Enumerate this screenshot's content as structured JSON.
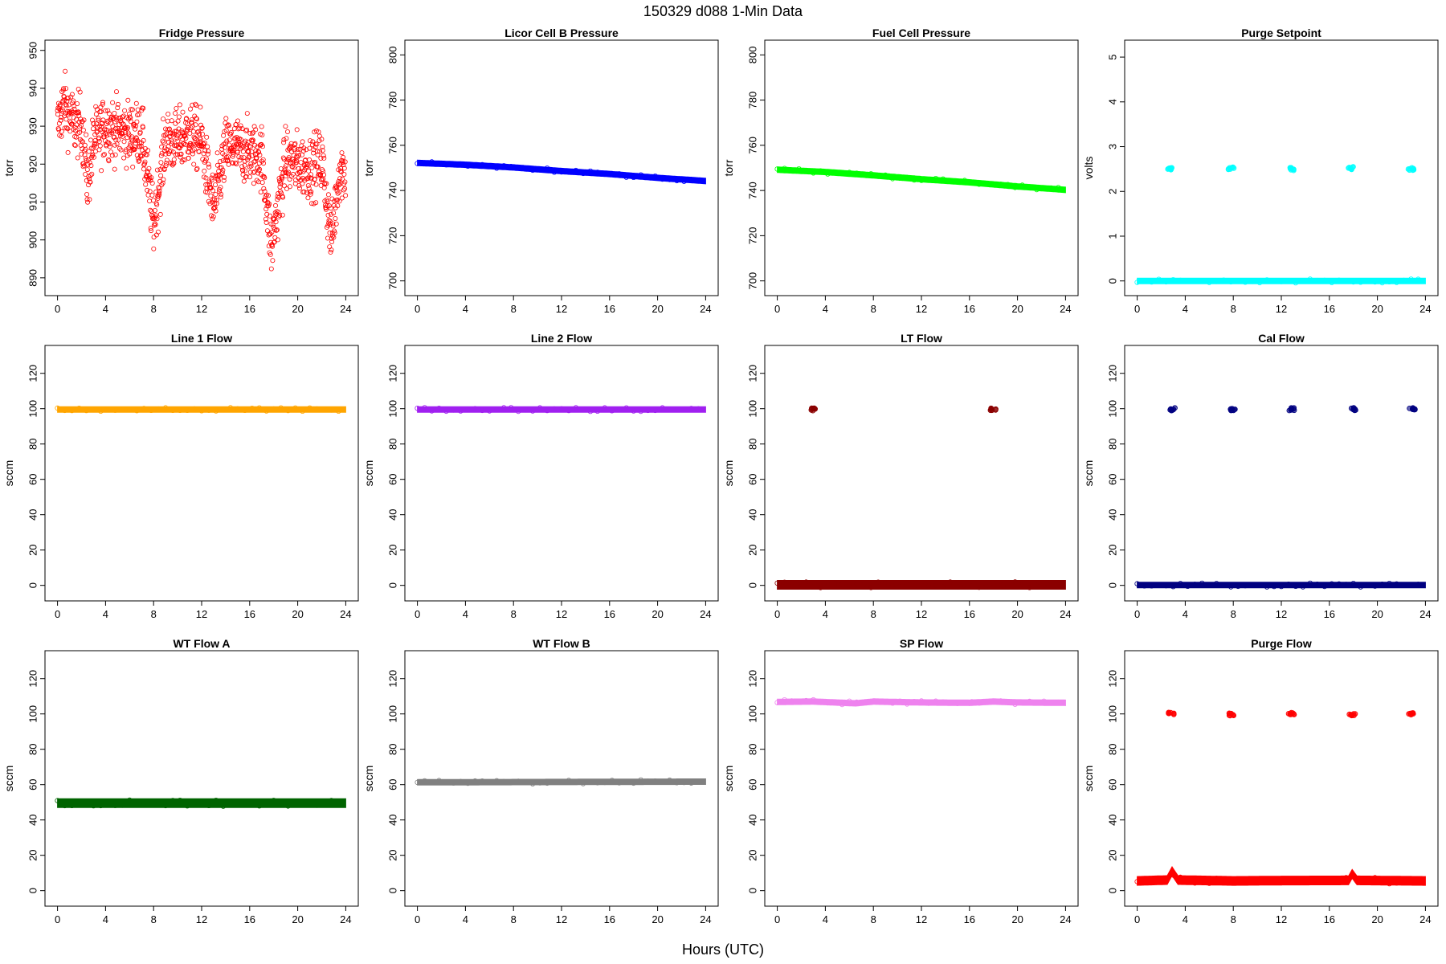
{
  "figure": {
    "title": "150329   d088   1-Min Data",
    "xlabel": "Hours (UTC)"
  },
  "chart_data": [
    {
      "type": "scatter",
      "title": "Fridge Pressure",
      "ylabel": "torr",
      "xlim": [
        0,
        24
      ],
      "ylim": [
        888,
        950
      ],
      "xticks": [
        0,
        4,
        8,
        12,
        16,
        20,
        24
      ],
      "yticks": [
        890,
        900,
        910,
        920,
        930,
        940,
        950
      ],
      "series": [
        {
          "color": "#ff0000",
          "marker": "open-circle",
          "scatter": 5.5,
          "points": [
            [
              0,
              930
            ],
            [
              0.5,
              936
            ],
            [
              1,
              933
            ],
            [
              1.5,
              930
            ],
            [
              2,
              931
            ],
            [
              2.5,
              915
            ],
            [
              3,
              926
            ],
            [
              4,
              930
            ],
            [
              5,
              929
            ],
            [
              6,
              928
            ],
            [
              7,
              928
            ],
            [
              8,
              904
            ],
            [
              9,
              926
            ],
            [
              10,
              926
            ],
            [
              11,
              928
            ],
            [
              12,
              926
            ],
            [
              13,
              908
            ],
            [
              14,
              924
            ],
            [
              15,
              924
            ],
            [
              16,
              923
            ],
            [
              17,
              922
            ],
            [
              17.8,
              898
            ],
            [
              19,
              921
            ],
            [
              20,
              920
            ],
            [
              21,
              919
            ],
            [
              22,
              921
            ],
            [
              22.8,
              900
            ],
            [
              23.5,
              919
            ],
            [
              24,
              918
            ]
          ]
        }
      ]
    },
    {
      "type": "scatter",
      "title": "Licor Cell B Pressure",
      "ylabel": "torr",
      "xlim": [
        0,
        24
      ],
      "ylim": [
        698,
        802
      ],
      "xticks": [
        0,
        4,
        8,
        12,
        16,
        20,
        24
      ],
      "yticks": [
        700,
        720,
        740,
        760,
        780,
        800
      ],
      "series": [
        {
          "color": "#0000ff",
          "marker": "filled-band",
          "points": [
            [
              0,
              752.2
            ],
            [
              4,
              751.4
            ],
            [
              8,
              750.2
            ],
            [
              12,
              748.6
            ],
            [
              16,
              747.3
            ],
            [
              20,
              745.6
            ],
            [
              24,
              744.2
            ]
          ]
        }
      ]
    },
    {
      "type": "scatter",
      "title": "Fuel Cell Pressure",
      "ylabel": "torr",
      "xlim": [
        0,
        24
      ],
      "ylim": [
        698,
        802
      ],
      "xticks": [
        0,
        4,
        8,
        12,
        16,
        20,
        24
      ],
      "yticks": [
        700,
        720,
        740,
        760,
        780,
        800
      ],
      "series": [
        {
          "color": "#00ff00",
          "marker": "filled-band",
          "points": [
            [
              0,
              749.2
            ],
            [
              4,
              748.2
            ],
            [
              8,
              746.7
            ],
            [
              12,
              745
            ],
            [
              16,
              743.6
            ],
            [
              20,
              741.8
            ],
            [
              24,
              740.3
            ]
          ]
        }
      ]
    },
    {
      "type": "scatter",
      "title": "Purge Setpoint",
      "ylabel": "volts",
      "xlim": [
        0,
        24
      ],
      "ylim": [
        -0.1,
        5.15
      ],
      "xticks": [
        0,
        4,
        8,
        12,
        16,
        20,
        24
      ],
      "yticks": [
        0,
        1,
        2,
        3,
        4,
        5
      ],
      "series": [
        {
          "color": "#00ffff",
          "marker": "filled-band",
          "points": [
            [
              0,
              0
            ],
            [
              24,
              0
            ]
          ]
        },
        {
          "color": "#00ffff",
          "marker": "clusters",
          "points": [
            [
              2.7,
              2.5
            ],
            [
              7.7,
              2.52
            ],
            [
              12.7,
              2.5
            ],
            [
              17.7,
              2.52
            ],
            [
              22.7,
              2.5
            ]
          ]
        }
      ]
    },
    {
      "type": "scatter",
      "title": "Line 1 Flow",
      "ylabel": "sccm",
      "xlim": [
        0,
        24
      ],
      "ylim": [
        -3,
        130
      ],
      "xticks": [
        0,
        4,
        8,
        12,
        16,
        20,
        24
      ],
      "yticks": [
        0,
        20,
        40,
        60,
        80,
        100,
        120
      ],
      "series": [
        {
          "color": "#ffa500",
          "marker": "filled-band",
          "points": [
            [
              0,
              99.5
            ],
            [
              24,
              99.5
            ]
          ]
        }
      ]
    },
    {
      "type": "scatter",
      "title": "Line 2 Flow",
      "ylabel": "sccm",
      "xlim": [
        0,
        24
      ],
      "ylim": [
        -3,
        130
      ],
      "xticks": [
        0,
        4,
        8,
        12,
        16,
        20,
        24
      ],
      "yticks": [
        0,
        20,
        40,
        60,
        80,
        100,
        120
      ],
      "series": [
        {
          "color": "#a020f0",
          "marker": "filled-band",
          "points": [
            [
              0,
              99.5
            ],
            [
              24,
              99.5
            ]
          ]
        }
      ]
    },
    {
      "type": "scatter",
      "title": "LT Flow",
      "ylabel": "sccm",
      "xlim": [
        0,
        24
      ],
      "ylim": [
        -3,
        130
      ],
      "xticks": [
        0,
        4,
        8,
        12,
        16,
        20,
        24
      ],
      "yticks": [
        0,
        20,
        40,
        60,
        80,
        100,
        120
      ],
      "series": [
        {
          "color": "#8b0000",
          "marker": "thick-band",
          "points": [
            [
              0,
              0.3
            ],
            [
              24,
              0.3
            ]
          ]
        },
        {
          "color": "#8b0000",
          "marker": "clusters",
          "points": [
            [
              2.95,
              99.5
            ],
            [
              17.9,
              99.5
            ]
          ]
        }
      ]
    },
    {
      "type": "scatter",
      "title": "Cal Flow",
      "ylabel": "sccm",
      "xlim": [
        0,
        24
      ],
      "ylim": [
        -3,
        130
      ],
      "xticks": [
        0,
        4,
        8,
        12,
        16,
        20,
        24
      ],
      "yticks": [
        0,
        20,
        40,
        60,
        80,
        100,
        120
      ],
      "series": [
        {
          "color": "#000080",
          "marker": "filled-band",
          "points": [
            [
              0,
              0.2
            ],
            [
              24,
              0.2
            ]
          ]
        },
        {
          "color": "#000080",
          "marker": "clusters",
          "points": [
            [
              2.8,
              99.7
            ],
            [
              7.8,
              99.7
            ],
            [
              12.8,
              99.7
            ],
            [
              17.9,
              99.7
            ],
            [
              22.8,
              99.7
            ]
          ]
        }
      ]
    },
    {
      "type": "scatter",
      "title": "WT Flow A",
      "ylabel": "sccm",
      "xlim": [
        0,
        24
      ],
      "ylim": [
        -3,
        130
      ],
      "xticks": [
        0,
        4,
        8,
        12,
        16,
        20,
        24
      ],
      "yticks": [
        0,
        20,
        40,
        60,
        80,
        100,
        120
      ],
      "series": [
        {
          "color": "#006400",
          "marker": "thick-band",
          "points": [
            [
              0,
              49.5
            ],
            [
              24,
              49.5
            ]
          ]
        }
      ]
    },
    {
      "type": "scatter",
      "title": "WT Flow B",
      "ylabel": "sccm",
      "xlim": [
        0,
        24
      ],
      "ylim": [
        -3,
        130
      ],
      "xticks": [
        0,
        4,
        8,
        12,
        16,
        20,
        24
      ],
      "yticks": [
        0,
        20,
        40,
        60,
        80,
        100,
        120
      ],
      "series": [
        {
          "color": "#808080",
          "marker": "filled-band",
          "points": [
            [
              0,
              61.3
            ],
            [
              12,
              61.5
            ],
            [
              24,
              61.7
            ]
          ]
        }
      ]
    },
    {
      "type": "scatter",
      "title": "SP Flow",
      "ylabel": "sccm",
      "xlim": [
        0,
        24
      ],
      "ylim": [
        -3,
        130
      ],
      "xticks": [
        0,
        4,
        8,
        12,
        16,
        20,
        24
      ],
      "yticks": [
        0,
        20,
        40,
        60,
        80,
        100,
        120
      ],
      "series": [
        {
          "color": "#ee82ee",
          "marker": "filled-band",
          "points": [
            [
              0,
              106.8
            ],
            [
              3,
              107
            ],
            [
              6.5,
              106
            ],
            [
              8,
              107
            ],
            [
              12,
              106.5
            ],
            [
              16,
              106.3
            ],
            [
              18,
              107
            ],
            [
              20,
              106.5
            ],
            [
              24,
              106.3
            ]
          ]
        }
      ]
    },
    {
      "type": "scatter",
      "title": "Purge Flow",
      "ylabel": "sccm",
      "xlim": [
        0,
        24
      ],
      "ylim": [
        -3,
        130
      ],
      "xticks": [
        0,
        4,
        8,
        12,
        16,
        20,
        24
      ],
      "yticks": [
        0,
        20,
        40,
        60,
        80,
        100,
        120
      ],
      "series": [
        {
          "color": "#ff0000",
          "marker": "thick-band",
          "points": [
            [
              0,
              5.5
            ],
            [
              2.5,
              6
            ],
            [
              2.9,
              11
            ],
            [
              3.4,
              6
            ],
            [
              8,
              5.5
            ],
            [
              12,
              5.7
            ],
            [
              17.6,
              5.8
            ],
            [
              17.9,
              9.5
            ],
            [
              18.3,
              5.8
            ],
            [
              24,
              5.5
            ]
          ]
        },
        {
          "color": "#ff0000",
          "marker": "clusters",
          "points": [
            [
              2.75,
              100
            ],
            [
              7.75,
              99.8
            ],
            [
              12.75,
              100
            ],
            [
              17.8,
              99.8
            ],
            [
              22.75,
              100
            ]
          ]
        }
      ]
    }
  ]
}
